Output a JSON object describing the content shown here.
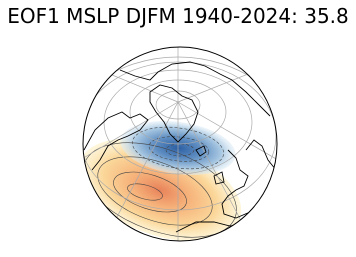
{
  "header": {
    "title": "EOF1 MSLP DJFM 1940-2024: 35.8"
  }
}
